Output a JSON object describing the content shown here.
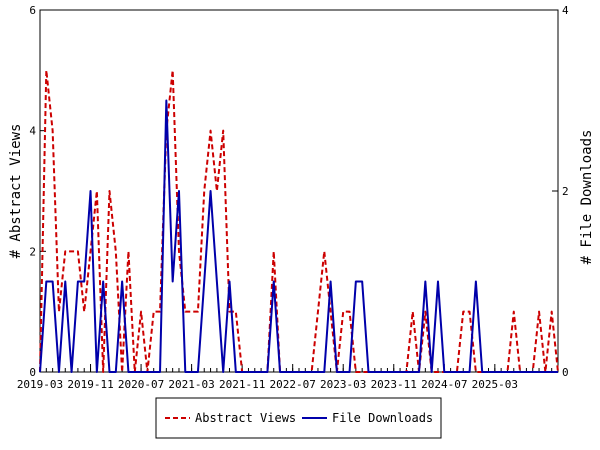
{
  "chart_data": {
    "type": "line",
    "ylabel_left": "# Abstract Views",
    "ylabel_right": "# File Downloads",
    "xlabel": "",
    "x_start": "2019-03",
    "x_tick_labels": [
      "2019-03",
      "2019-11",
      "2020-07",
      "2021-03",
      "2021-11",
      "2022-07",
      "2023-03",
      "2023-11",
      "2024-07",
      "2025-03"
    ],
    "y_left": {
      "min": 0,
      "max": 6,
      "ticks": [
        0,
        2,
        4,
        6
      ]
    },
    "y_right": {
      "min": 0,
      "max": 4,
      "ticks": [
        0,
        2,
        4
      ]
    },
    "legend_position": "bottom",
    "series": [
      {
        "name": "Abstract Views",
        "axis": "left",
        "color": "#cc0000",
        "dash": "dashed",
        "values": [
          0,
          5,
          4,
          1,
          2,
          2,
          2,
          1,
          2,
          3,
          0,
          3,
          2,
          0,
          2,
          0,
          1,
          0,
          1,
          1,
          4,
          5,
          2,
          1,
          1,
          1,
          3,
          4,
          3,
          4,
          1,
          1,
          0,
          0,
          0,
          0,
          0,
          2,
          0,
          0,
          0,
          0,
          0,
          0,
          1,
          2,
          1,
          0,
          1,
          1,
          0,
          0,
          0,
          0,
          0,
          0,
          0,
          0,
          0,
          1,
          0,
          1,
          0,
          0,
          0,
          0,
          0,
          1,
          1,
          0,
          0,
          0,
          0,
          0,
          0,
          1,
          0,
          0,
          0,
          1,
          0,
          1,
          0
        ]
      },
      {
        "name": "File Downloads",
        "axis": "right",
        "color": "#0000aa",
        "dash": "solid",
        "values": [
          0,
          1,
          1,
          0,
          1,
          0,
          1,
          1,
          2,
          0,
          1,
          0,
          0,
          1,
          0,
          0,
          0,
          0,
          0,
          0,
          3,
          1,
          2,
          0,
          0,
          0,
          1,
          2,
          1,
          0,
          1,
          0,
          0,
          0,
          0,
          0,
          0,
          1,
          0,
          0,
          0,
          0,
          0,
          0,
          0,
          0,
          1,
          0,
          0,
          0,
          1,
          1,
          0,
          0,
          0,
          0,
          0,
          0,
          0,
          0,
          0,
          1,
          0,
          1,
          0,
          0,
          0,
          0,
          0,
          1,
          0,
          0,
          0,
          0,
          0,
          0,
          0,
          0,
          0,
          0,
          0,
          0,
          0
        ]
      }
    ]
  }
}
